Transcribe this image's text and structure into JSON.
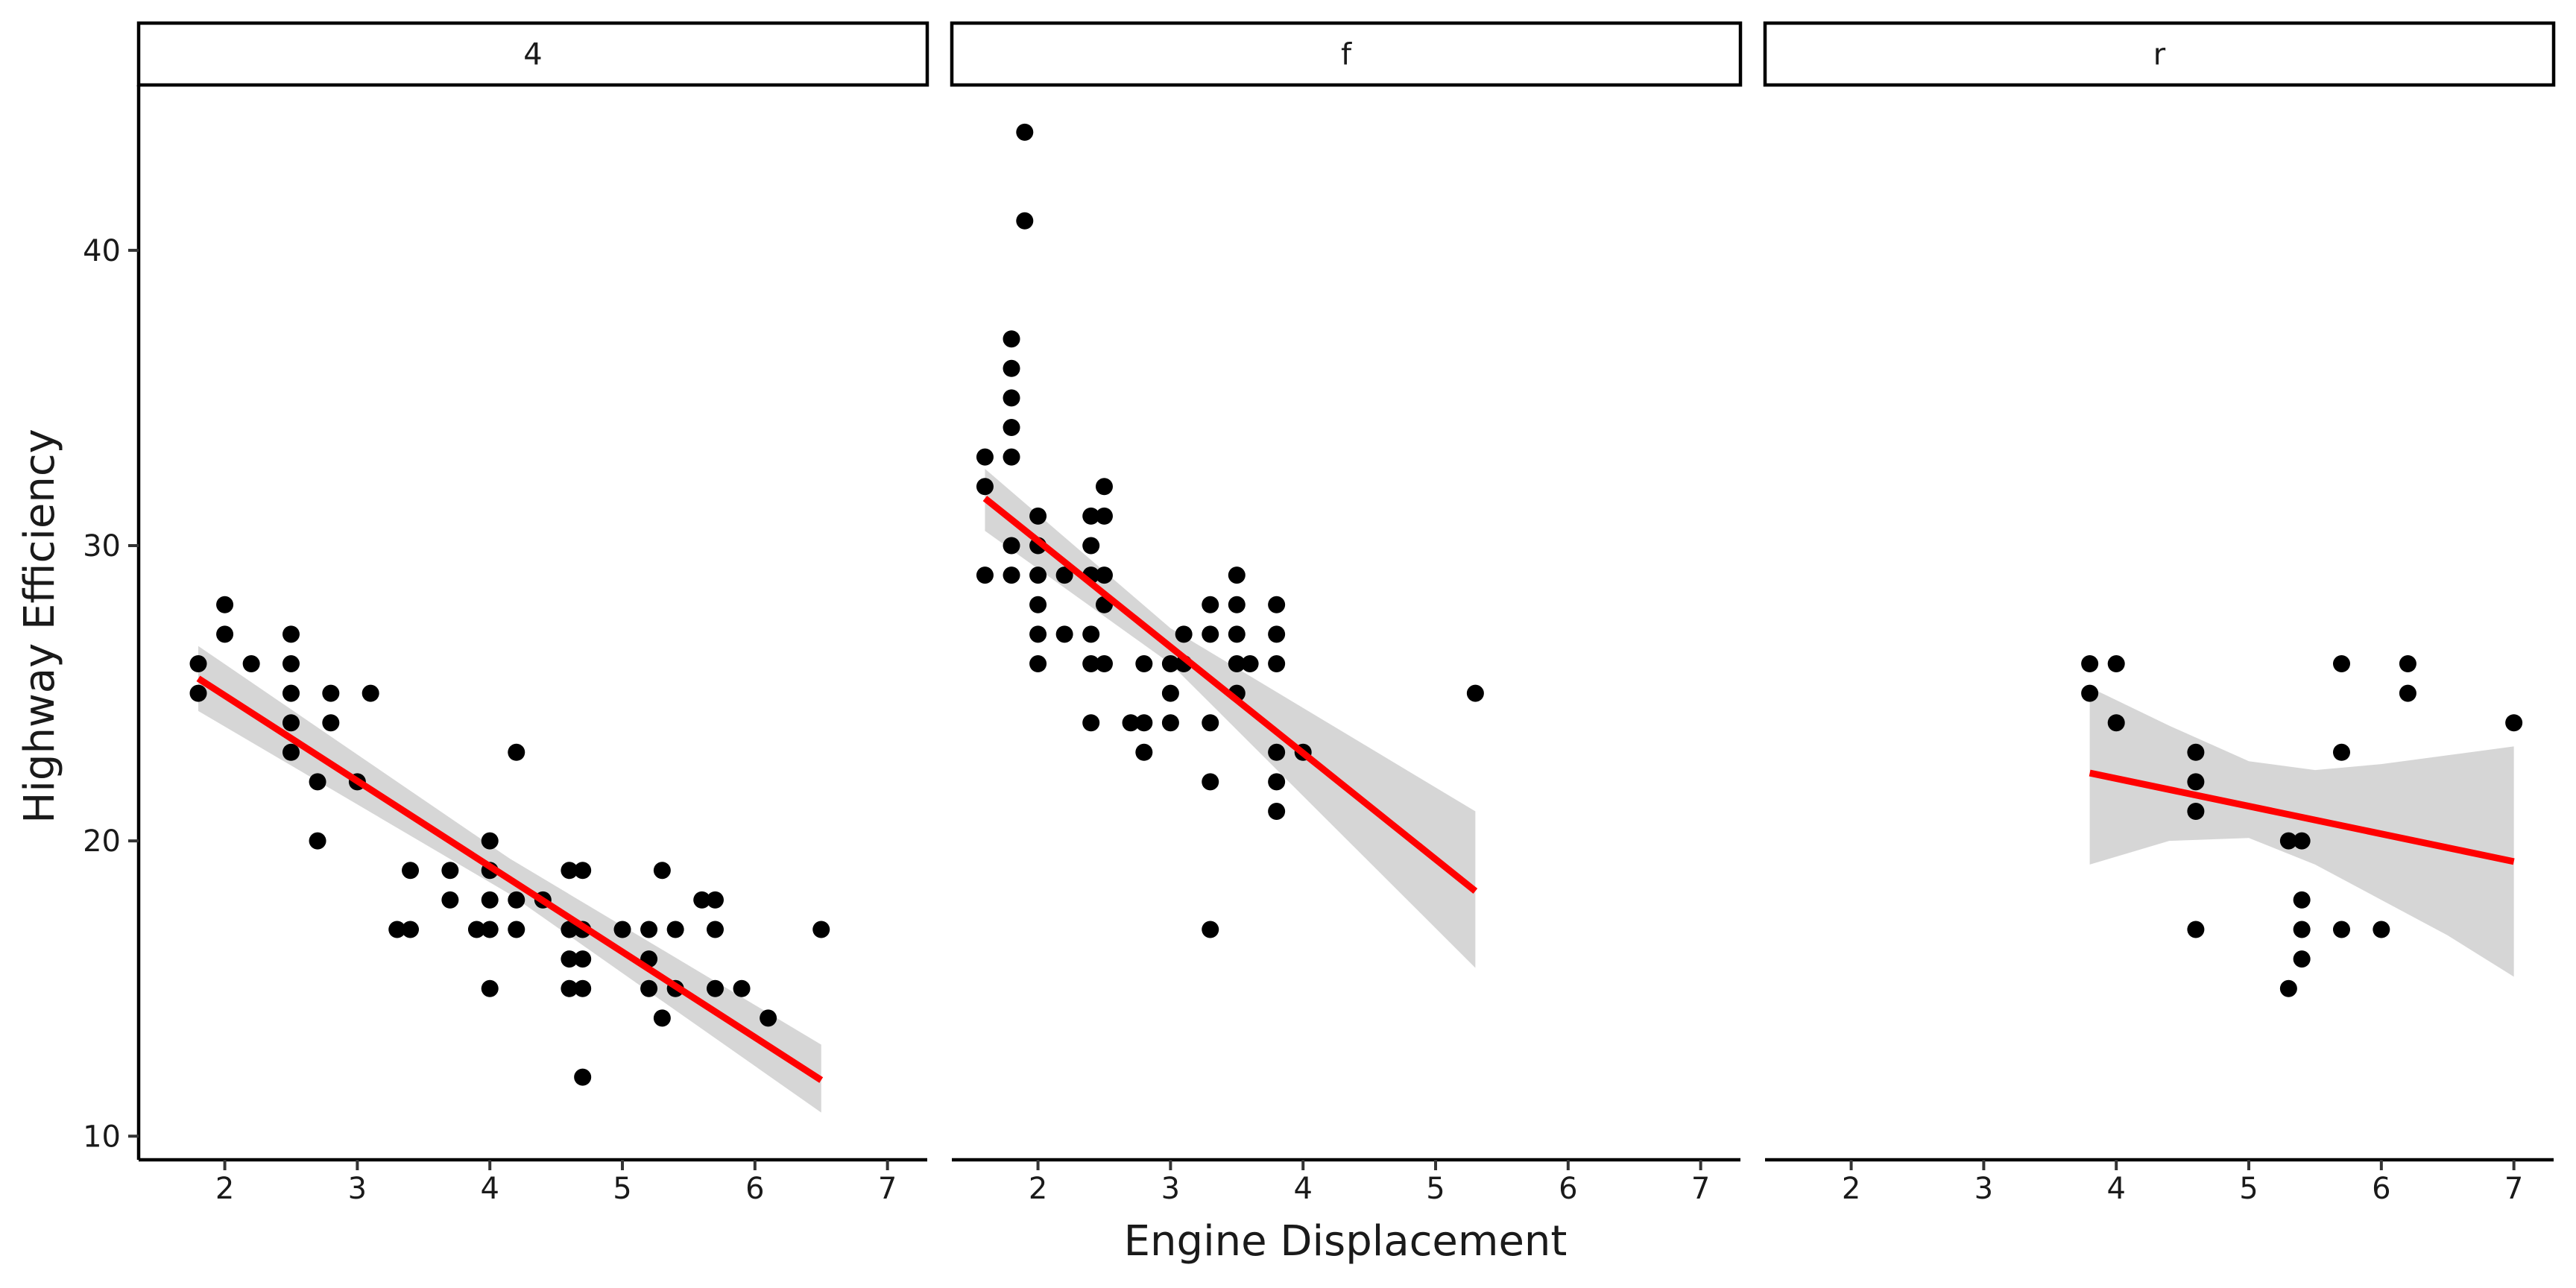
{
  "chart_data": {
    "type": "scatter",
    "xlabel": "Engine Displacement",
    "ylabel": "Highway Efficiency",
    "xlim": [
      1.35,
      7.3
    ],
    "ylim": [
      9.2,
      45.6
    ],
    "x_ticks": [
      2,
      3,
      4,
      5,
      6,
      7
    ],
    "y_ticks": [
      10,
      20,
      30,
      40
    ],
    "grid": false,
    "colors": {
      "points": "#000000",
      "fit": "#ff0000",
      "band": "#999999"
    },
    "facets": [
      {
        "label": "4",
        "points": [
          [
            1.8,
            26
          ],
          [
            1.8,
            25
          ],
          [
            2.0,
            28
          ],
          [
            2.0,
            27
          ],
          [
            2.2,
            26
          ],
          [
            2.5,
            27
          ],
          [
            2.5,
            26
          ],
          [
            2.5,
            25
          ],
          [
            2.5,
            24
          ],
          [
            2.5,
            23
          ],
          [
            2.7,
            22
          ],
          [
            2.7,
            20
          ],
          [
            2.8,
            25
          ],
          [
            2.8,
            24
          ],
          [
            3.0,
            22
          ],
          [
            3.1,
            25
          ],
          [
            3.3,
            17
          ],
          [
            3.4,
            19
          ],
          [
            3.4,
            17
          ],
          [
            3.7,
            19
          ],
          [
            3.7,
            18
          ],
          [
            3.9,
            17
          ],
          [
            4.0,
            20
          ],
          [
            4.0,
            19
          ],
          [
            4.0,
            18
          ],
          [
            4.0,
            17
          ],
          [
            4.0,
            15
          ],
          [
            4.2,
            23
          ],
          [
            4.2,
            18
          ],
          [
            4.2,
            17
          ],
          [
            4.4,
            18
          ],
          [
            4.6,
            19
          ],
          [
            4.6,
            17
          ],
          [
            4.6,
            16
          ],
          [
            4.6,
            15
          ],
          [
            4.7,
            19
          ],
          [
            4.7,
            17
          ],
          [
            4.7,
            16
          ],
          [
            4.7,
            15
          ],
          [
            4.7,
            12
          ],
          [
            5.0,
            17
          ],
          [
            5.2,
            17
          ],
          [
            5.2,
            16
          ],
          [
            5.2,
            15
          ],
          [
            5.3,
            19
          ],
          [
            5.3,
            14
          ],
          [
            5.4,
            17
          ],
          [
            5.4,
            15
          ],
          [
            5.6,
            18
          ],
          [
            5.7,
            18
          ],
          [
            5.7,
            17
          ],
          [
            5.7,
            15
          ],
          [
            5.9,
            15
          ],
          [
            6.1,
            14
          ],
          [
            6.5,
            17
          ]
        ],
        "fit": {
          "x": [
            1.8,
            6.5
          ],
          "y": [
            25.5,
            11.9
          ]
        },
        "band": {
          "x": [
            1.8,
            4.15,
            6.5
          ],
          "lower": [
            24.4,
            18.2,
            10.8
          ],
          "upper": [
            26.6,
            19.4,
            13.1
          ]
        }
      },
      {
        "label": "f",
        "points": [
          [
            1.6,
            33
          ],
          [
            1.6,
            32
          ],
          [
            1.6,
            29
          ],
          [
            1.8,
            37
          ],
          [
            1.8,
            36
          ],
          [
            1.8,
            35
          ],
          [
            1.8,
            34
          ],
          [
            1.8,
            33
          ],
          [
            1.8,
            30
          ],
          [
            1.8,
            29
          ],
          [
            1.9,
            44
          ],
          [
            1.9,
            41
          ],
          [
            2.0,
            31
          ],
          [
            2.0,
            30
          ],
          [
            2.0,
            29
          ],
          [
            2.0,
            28
          ],
          [
            2.0,
            27
          ],
          [
            2.0,
            26
          ],
          [
            2.2,
            29
          ],
          [
            2.2,
            27
          ],
          [
            2.4,
            31
          ],
          [
            2.4,
            30
          ],
          [
            2.4,
            29
          ],
          [
            2.4,
            27
          ],
          [
            2.4,
            26
          ],
          [
            2.4,
            24
          ],
          [
            2.5,
            32
          ],
          [
            2.5,
            31
          ],
          [
            2.5,
            29
          ],
          [
            2.5,
            28
          ],
          [
            2.5,
            26
          ],
          [
            2.7,
            24
          ],
          [
            2.8,
            26
          ],
          [
            2.8,
            24
          ],
          [
            2.8,
            23
          ],
          [
            3.0,
            26
          ],
          [
            3.0,
            25
          ],
          [
            3.0,
            24
          ],
          [
            3.1,
            27
          ],
          [
            3.1,
            26
          ],
          [
            3.3,
            28
          ],
          [
            3.3,
            27
          ],
          [
            3.3,
            24
          ],
          [
            3.3,
            22
          ],
          [
            3.3,
            17
          ],
          [
            3.5,
            29
          ],
          [
            3.5,
            28
          ],
          [
            3.5,
            27
          ],
          [
            3.5,
            26
          ],
          [
            3.5,
            25
          ],
          [
            3.6,
            26
          ],
          [
            3.8,
            28
          ],
          [
            3.8,
            27
          ],
          [
            3.8,
            26
          ],
          [
            3.8,
            23
          ],
          [
            3.8,
            22
          ],
          [
            3.8,
            21
          ],
          [
            4.0,
            23
          ],
          [
            5.3,
            25
          ]
        ],
        "fit": {
          "x": [
            1.6,
            5.3
          ],
          "y": [
            31.6,
            18.3
          ]
        },
        "band": {
          "x": [
            1.6,
            3.0,
            5.3
          ],
          "lower": [
            30.5,
            26.0,
            15.7
          ],
          "upper": [
            32.6,
            27.2,
            21.0
          ]
        }
      },
      {
        "label": "r",
        "points": [
          [
            3.8,
            26
          ],
          [
            3.8,
            25
          ],
          [
            4.0,
            26
          ],
          [
            4.0,
            24
          ],
          [
            4.6,
            23
          ],
          [
            4.6,
            22
          ],
          [
            4.6,
            21
          ],
          [
            4.6,
            17
          ],
          [
            5.3,
            20
          ],
          [
            5.3,
            15
          ],
          [
            5.4,
            20
          ],
          [
            5.4,
            18
          ],
          [
            5.4,
            17
          ],
          [
            5.4,
            16
          ],
          [
            5.7,
            26
          ],
          [
            5.7,
            23
          ],
          [
            5.7,
            17
          ],
          [
            6.0,
            17
          ],
          [
            6.2,
            26
          ],
          [
            6.2,
            25
          ],
          [
            7.0,
            24
          ]
        ],
        "fit": {
          "x": [
            3.8,
            7.0
          ],
          "y": [
            22.3,
            19.3
          ]
        },
        "band": {
          "x": [
            3.8,
            4.4,
            5.0,
            5.5,
            6.0,
            6.5,
            7.0
          ],
          "lower": [
            19.2,
            20.0,
            20.1,
            19.2,
            18.0,
            16.8,
            15.4
          ],
          "upper": [
            25.2,
            23.9,
            22.7,
            22.4,
            22.6,
            22.9,
            23.2
          ]
        }
      }
    ]
  }
}
